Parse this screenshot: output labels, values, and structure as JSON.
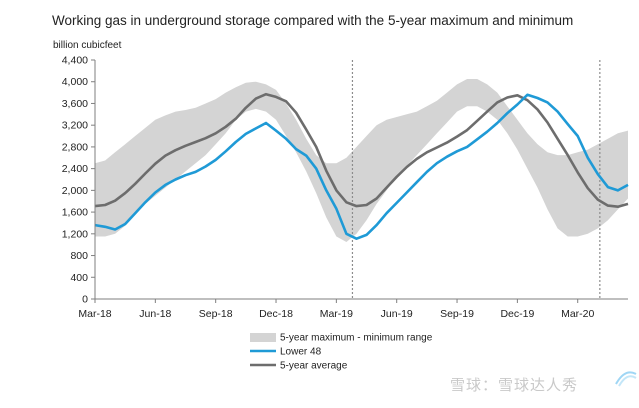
{
  "chart_data": {
    "type": "area",
    "title": "Working gas in underground  storage compared with the 5-year maximum  and minimum",
    "ylabel": "billion cubicfeet",
    "ylim": [
      0,
      4400
    ],
    "yticks": [
      0,
      400,
      800,
      1200,
      1600,
      2000,
      2400,
      2800,
      3200,
      3600,
      4000,
      4400
    ],
    "ytick_labels": [
      "0",
      "400",
      "800",
      "1,200",
      "1,600",
      "2,000",
      "2,400",
      "2,800",
      "3,200",
      "3,600",
      "4,000",
      "4,400"
    ],
    "xlim": [
      0,
      26.5
    ],
    "xticks": [
      0,
      3,
      6,
      9,
      12,
      15,
      18,
      21,
      24
    ],
    "xtick_labels": [
      "Mar-18",
      "Jun-18",
      "Sep-18",
      "Dec-18",
      "Mar-19",
      "Jun-19",
      "Sep-19",
      "Dec-19",
      "Mar-20"
    ],
    "vlines": [
      12.8,
      25.1
    ],
    "x": [
      0,
      0.5,
      1,
      1.5,
      2,
      2.5,
      3,
      3.5,
      4,
      4.5,
      5,
      5.5,
      6,
      6.5,
      7,
      7.5,
      8,
      8.5,
      9,
      9.5,
      10,
      10.5,
      11,
      11.5,
      12,
      12.5,
      13,
      13.5,
      14,
      14.5,
      15,
      15.5,
      16,
      16.5,
      17,
      17.5,
      18,
      18.5,
      19,
      19.5,
      20,
      20.5,
      21,
      21.5,
      22,
      22.5,
      23,
      23.5,
      24,
      24.5,
      25,
      25.5,
      26,
      26.5
    ],
    "series": [
      {
        "name": "5-year maximum - minimum range",
        "type": "band",
        "upper": [
          2500,
          2550,
          2700,
          2850,
          3000,
          3150,
          3300,
          3380,
          3450,
          3480,
          3520,
          3600,
          3680,
          3800,
          3900,
          3980,
          4000,
          3950,
          3850,
          3600,
          3300,
          2950,
          2650,
          2500,
          2500,
          2600,
          2800,
          3000,
          3200,
          3300,
          3350,
          3400,
          3450,
          3550,
          3650,
          3800,
          3950,
          4050,
          4050,
          3950,
          3800,
          3550,
          3300,
          3050,
          2850,
          2700,
          2650,
          2650,
          2700,
          2750,
          2850,
          2950,
          3050,
          3100
        ],
        "lower": [
          1150,
          1150,
          1200,
          1350,
          1550,
          1750,
          1900,
          2050,
          2200,
          2350,
          2500,
          2650,
          2850,
          3050,
          3300,
          3450,
          3500,
          3450,
          3300,
          3000,
          2700,
          2350,
          1950,
          1500,
          1150,
          1050,
          1200,
          1450,
          1750,
          2000,
          2250,
          2450,
          2650,
          2850,
          3050,
          3250,
          3450,
          3550,
          3550,
          3450,
          3300,
          3050,
          2750,
          2400,
          2050,
          1650,
          1300,
          1150,
          1150,
          1200,
          1300,
          1450,
          1650,
          1850
        ]
      },
      {
        "name": "Lower 48",
        "type": "line",
        "color": "#1f9ad6",
        "values": [
          1360,
          1330,
          1280,
          1380,
          1580,
          1780,
          1960,
          2100,
          2200,
          2280,
          2340,
          2440,
          2560,
          2720,
          2890,
          3040,
          3140,
          3240,
          3100,
          2950,
          2760,
          2640,
          2400,
          2000,
          1660,
          1200,
          1110,
          1180,
          1360,
          1580,
          1770,
          1960,
          2150,
          2340,
          2500,
          2620,
          2720,
          2800,
          2940,
          3080,
          3240,
          3420,
          3580,
          3760,
          3700,
          3620,
          3450,
          3220,
          3000,
          2600,
          2300,
          2060,
          2000,
          2100
        ]
      },
      {
        "name": "5-year average",
        "type": "line",
        "color": "#6d6d6d",
        "values": [
          1710,
          1730,
          1810,
          1950,
          2120,
          2310,
          2490,
          2640,
          2740,
          2820,
          2890,
          2960,
          3050,
          3170,
          3320,
          3520,
          3690,
          3770,
          3720,
          3640,
          3430,
          3120,
          2800,
          2360,
          2000,
          1780,
          1710,
          1730,
          1850,
          2050,
          2250,
          2430,
          2580,
          2700,
          2790,
          2880,
          2990,
          3110,
          3280,
          3450,
          3620,
          3710,
          3750,
          3660,
          3490,
          3250,
          2950,
          2650,
          2330,
          2040,
          1830,
          1720,
          1700,
          1750
        ]
      }
    ],
    "legend": [
      {
        "label": "5-year maximum - minimum range",
        "kind": "band"
      },
      {
        "label": "Lower 48",
        "kind": "line",
        "color": "#1f9ad6"
      },
      {
        "label": "5-year average",
        "kind": "line",
        "color": "#6d6d6d"
      }
    ],
    "legend_position": "bottom-center",
    "colors": {
      "band": "#d4d4d4",
      "axis": "#7f7f7f",
      "vline": "#8c8c8c",
      "text": "#222222"
    }
  },
  "watermark": {
    "text": "雪球：雪球达人秀"
  }
}
